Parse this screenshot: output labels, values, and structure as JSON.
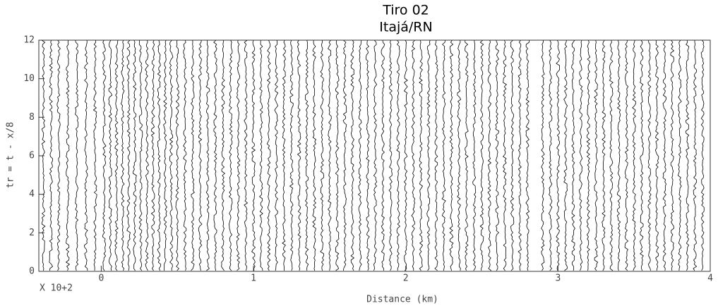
{
  "chart_data": {
    "type": "wiggle",
    "title": "Tiro 02",
    "subtitle": "Itajá/RN",
    "x_label": "Distance (km)",
    "y_label": "tr = t - x/8",
    "annotation": "X 10+2",
    "xlim": [
      -0.41,
      4.0
    ],
    "xticks": [
      0,
      1,
      2,
      3,
      4
    ],
    "ylim": [
      0,
      12
    ],
    "yticks": [
      0,
      2,
      4,
      6,
      8,
      10,
      12
    ],
    "color": "#000000",
    "traces": [
      -0.38,
      -0.33,
      -0.28,
      -0.22,
      -0.16,
      -0.1,
      -0.04,
      0.02,
      0.06,
      0.1,
      0.14,
      0.18,
      0.22,
      0.26,
      0.3,
      0.34,
      0.38,
      0.42,
      0.46,
      0.5,
      0.55,
      0.6,
      0.65,
      0.7,
      0.75,
      0.8,
      0.85,
      0.9,
      0.95,
      1.0,
      1.05,
      1.1,
      1.15,
      1.2,
      1.25,
      1.3,
      1.35,
      1.4,
      1.45,
      1.5,
      1.55,
      1.6,
      1.65,
      1.7,
      1.75,
      1.8,
      1.85,
      1.9,
      1.95,
      2.0,
      2.05,
      2.1,
      2.15,
      2.2,
      2.25,
      2.3,
      2.35,
      2.4,
      2.45,
      2.5,
      2.55,
      2.6,
      2.65,
      2.7,
      2.75,
      2.8,
      2.9,
      2.95,
      3.0,
      3.05,
      3.1,
      3.15,
      3.2,
      3.25,
      3.3,
      3.35,
      3.4,
      3.45,
      3.5,
      3.55,
      3.6,
      3.65,
      3.7,
      3.75,
      3.8,
      3.85,
      3.9,
      3.95
    ]
  }
}
